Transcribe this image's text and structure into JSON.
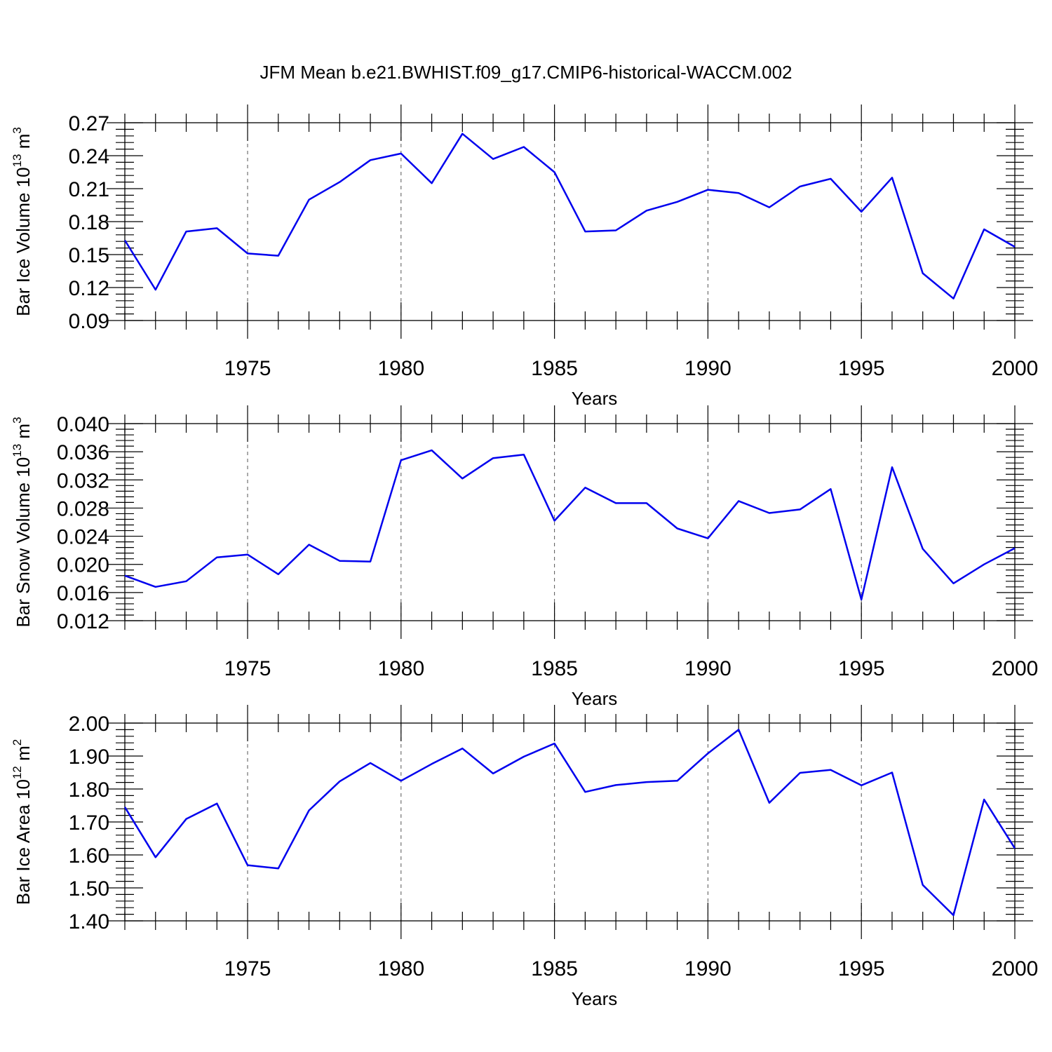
{
  "title": "JFM Mean b.e21.BWHIST.f09_g17.CMIP6-historical-WACCM.002",
  "chart_data": [
    {
      "type": "line",
      "ylabel": "Bar Ice Volume 10",
      "ylabel_exp": "13",
      "ylabel_unit": " m",
      "ylabel_unit_exp": "3",
      "xlabel": "Years",
      "xlim": [
        1971,
        2000
      ],
      "ylim": [
        0.09,
        0.27
      ],
      "yticks": [
        "0.09",
        "0.12",
        "0.15",
        "0.18",
        "0.21",
        "0.24",
        "0.27"
      ],
      "xticks": [
        "1975",
        "1980",
        "1985",
        "1990",
        "1995",
        "2000"
      ],
      "grid_x": true,
      "x": [
        1971,
        1972,
        1973,
        1974,
        1975,
        1976,
        1977,
        1978,
        1979,
        1980,
        1981,
        1982,
        1983,
        1984,
        1985,
        1986,
        1987,
        1988,
        1989,
        1990,
        1991,
        1992,
        1993,
        1994,
        1995,
        1996,
        1997,
        1998,
        1999,
        2000
      ],
      "series": [
        {
          "color": "#0000ee",
          "values": [
            0.163,
            0.118,
            0.171,
            0.174,
            0.151,
            0.149,
            0.2,
            0.216,
            0.236,
            0.242,
            0.215,
            0.26,
            0.237,
            0.248,
            0.225,
            0.171,
            0.172,
            0.19,
            0.198,
            0.209,
            0.206,
            0.193,
            0.212,
            0.219,
            0.189,
            0.22,
            0.133,
            0.11,
            0.173,
            0.157
          ]
        }
      ]
    },
    {
      "type": "line",
      "ylabel": "Bar Snow Volume 10",
      "ylabel_exp": "13",
      "ylabel_unit": " m",
      "ylabel_unit_exp": "3",
      "xlabel": "Years",
      "xlim": [
        1971,
        2000
      ],
      "ylim": [
        0.012,
        0.04
      ],
      "yticks": [
        "0.012",
        "0.016",
        "0.020",
        "0.024",
        "0.028",
        "0.032",
        "0.036",
        "0.040"
      ],
      "xticks": [
        "1975",
        "1980",
        "1985",
        "1990",
        "1995",
        "2000"
      ],
      "grid_x": true,
      "x": [
        1971,
        1972,
        1973,
        1974,
        1975,
        1976,
        1977,
        1978,
        1979,
        1980,
        1981,
        1982,
        1983,
        1984,
        1985,
        1986,
        1987,
        1988,
        1989,
        1990,
        1991,
        1992,
        1993,
        1994,
        1995,
        1996,
        1997,
        1998,
        1999,
        2000
      ],
      "series": [
        {
          "color": "#0000ee",
          "values": [
            0.0184,
            0.0168,
            0.0176,
            0.021,
            0.0214,
            0.0186,
            0.0228,
            0.0205,
            0.0204,
            0.0348,
            0.0362,
            0.0322,
            0.0351,
            0.0356,
            0.0262,
            0.0309,
            0.0287,
            0.0287,
            0.0251,
            0.0237,
            0.029,
            0.0273,
            0.0278,
            0.0307,
            0.015,
            0.0338,
            0.0222,
            0.0173,
            0.02,
            0.0223
          ]
        }
      ]
    },
    {
      "type": "line",
      "ylabel": "Bar Ice Area 10",
      "ylabel_exp": "12",
      "ylabel_unit": " m",
      "ylabel_unit_exp": "2",
      "xlabel": "Years",
      "xlim": [
        1971,
        2000
      ],
      "ylim": [
        1.4,
        2.0
      ],
      "yticks": [
        "1.40",
        "1.50",
        "1.60",
        "1.70",
        "1.80",
        "1.90",
        "2.00"
      ],
      "xticks": [
        "1975",
        "1980",
        "1985",
        "1990",
        "1995",
        "2000"
      ],
      "grid_x": true,
      "x": [
        1971,
        1972,
        1973,
        1974,
        1975,
        1976,
        1977,
        1978,
        1979,
        1980,
        1981,
        1982,
        1983,
        1984,
        1985,
        1986,
        1987,
        1988,
        1989,
        1990,
        1991,
        1992,
        1993,
        1994,
        1995,
        1996,
        1997,
        1998,
        1999,
        2000
      ],
      "series": [
        {
          "color": "#0000ee",
          "values": [
            1.745,
            1.593,
            1.709,
            1.756,
            1.569,
            1.559,
            1.735,
            1.823,
            1.879,
            1.825,
            1.876,
            1.923,
            1.847,
            1.898,
            1.938,
            1.791,
            1.812,
            1.821,
            1.825,
            1.908,
            1.98,
            1.758,
            1.849,
            1.858,
            1.811,
            1.85,
            1.509,
            1.417,
            1.768,
            1.62
          ]
        }
      ]
    }
  ]
}
